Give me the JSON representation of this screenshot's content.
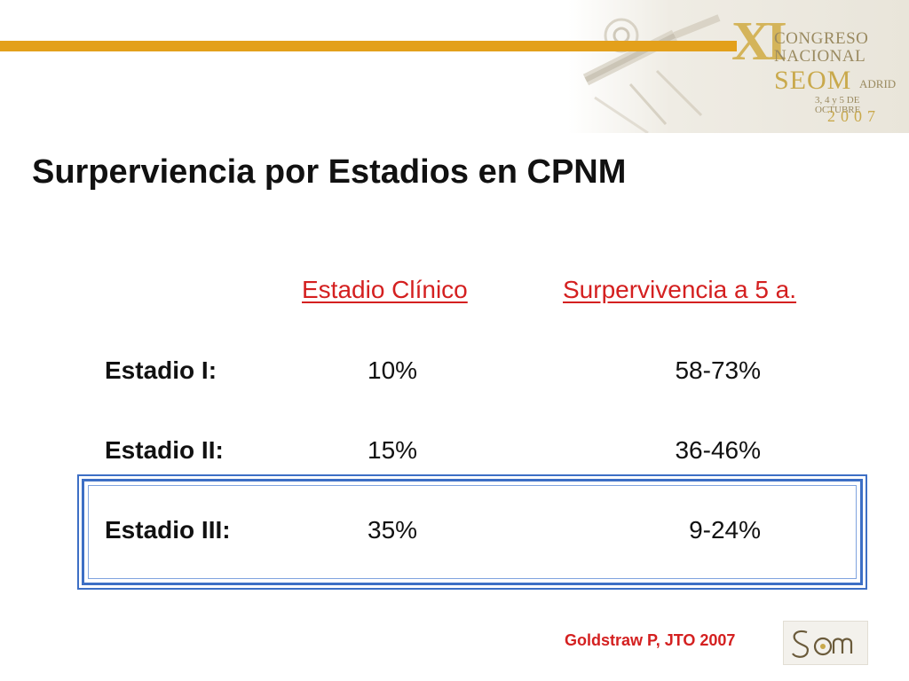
{
  "title": "Surperviencia por Estadios en CPNM",
  "logo": {
    "roman": "XI",
    "line1": "CONGRESO",
    "line2": "NACIONAL",
    "org": "SEOM",
    "city": "ADRID",
    "dates": "3, 4 y 5 DE OCTUBRE",
    "year": "2007"
  },
  "table": {
    "headers": [
      "Estadio Clínico",
      "Surpervivencia a 5 a."
    ],
    "rows": [
      {
        "stage": "Estadio I:",
        "percent": "10%",
        "survival": "58-73%"
      },
      {
        "stage": "Estadio II:",
        "percent": "15%",
        "survival": "36-46%"
      },
      {
        "stage": "Estadio III:",
        "percent": "35%",
        "survival": "9-24%"
      }
    ],
    "highlighted_row": "Estadio III:"
  },
  "reference": "Goldstraw P, JTO 2007",
  "colors": {
    "accent_bar": "#e3a01b",
    "header_text": "#d42020",
    "frame": "#3d6fc5"
  }
}
